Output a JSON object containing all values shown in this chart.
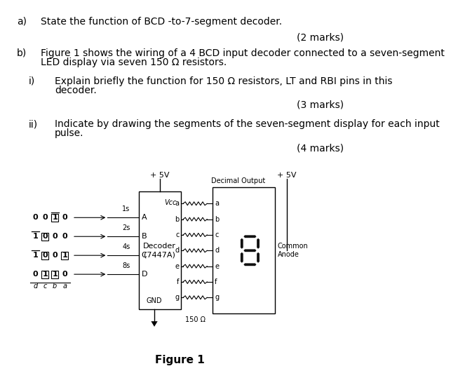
{
  "bg_color": "#ffffff",
  "text_color": "#000000",
  "title": "Figure 1",
  "part_a_label": "a)",
  "part_a_text": "State the function of BCD -to-7-segment decoder.",
  "part_a_marks": "(2 marks)",
  "part_b_label": "b)",
  "part_b_line1": "Figure 1 shows the wiring of a 4 BCD input decoder connected to a seven-segment",
  "part_b_line2": "LED display via seven 150 Ω resistors.",
  "part_bi_label": "i)",
  "part_bi_line1": "Explain briefly the function for 150 Ω resistors, LT and RBI pins in this",
  "part_bi_line2": "decoder.",
  "part_bi_marks": "(3 marks)",
  "part_bii_label": "ii)",
  "part_bii_line1": "Indicate by drawing the segments of the seven-segment display for each input",
  "part_bii_line2": "pulse.",
  "part_bii_marks": "(4 marks)",
  "input_data": [
    [
      "0",
      "0",
      "1",
      "0"
    ],
    [
      "1",
      "0",
      "0",
      "0"
    ],
    [
      "1",
      "0",
      "0",
      "1"
    ],
    [
      "0",
      "1",
      "1",
      "0"
    ]
  ],
  "overline_map": [
    [
      2
    ],
    [
      0
    ],
    [
      0
    ],
    []
  ],
  "box_map": [
    [
      2
    ],
    [
      1
    ],
    [
      1,
      3
    ],
    [
      1,
      2
    ]
  ],
  "bit_labels": [
    "d",
    "c",
    "b",
    "a"
  ],
  "decoder_label1": "Decoder",
  "decoder_label2": "(7447A)",
  "decoder_pins_left": [
    "A",
    "B",
    "C",
    "D"
  ],
  "decoder_pin_weights": [
    "1s",
    "2s",
    "4s",
    "8s"
  ],
  "decoder_pins_right": [
    "a",
    "b",
    "c",
    "d",
    "e",
    "f",
    "g"
  ],
  "vcc_label": "Vcc",
  "gnd_label": "GND",
  "resistor_label": "150 Ω",
  "decimal_output_label": "Decimal Output",
  "common_anode_label": "Common\nAnode",
  "vcc_top": "+ 5V",
  "vcc_right": "+ 5V"
}
